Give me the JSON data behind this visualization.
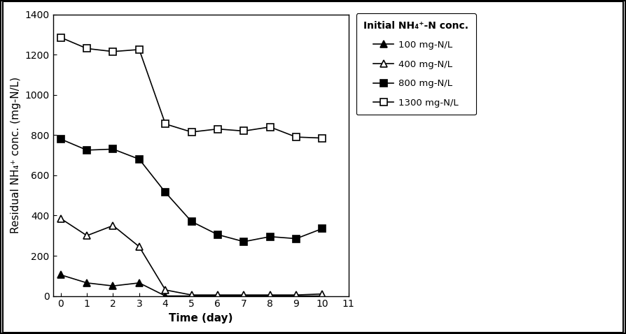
{
  "title": "",
  "xlabel": "Time (day)",
  "ylabel": "Residual NH₄⁺ conc. (mg-N/L)",
  "xlim": [
    -0.3,
    11
  ],
  "ylim": [
    0,
    1400
  ],
  "xticks": [
    0,
    1,
    2,
    3,
    4,
    5,
    6,
    7,
    8,
    9,
    10,
    11
  ],
  "yticks": [
    0,
    200,
    400,
    600,
    800,
    1000,
    1200,
    1400
  ],
  "legend_title": "Initial NH₄⁺-N conc.",
  "series": [
    {
      "label": "100 mg-N/L",
      "x": [
        0,
        1,
        2,
        3,
        4,
        5,
        6,
        7,
        8,
        9,
        10
      ],
      "y": [
        105,
        65,
        50,
        65,
        0,
        0,
        0,
        0,
        0,
        0,
        0
      ],
      "color": "black",
      "marker": "^",
      "markerfacecolor": "black",
      "markeredgecolor": "black",
      "markersize": 7
    },
    {
      "label": "400 mg-N/L",
      "x": [
        0,
        1,
        2,
        3,
        4,
        5,
        6,
        7,
        8,
        9,
        10
      ],
      "y": [
        385,
        300,
        350,
        245,
        30,
        5,
        5,
        5,
        5,
        5,
        10
      ],
      "color": "black",
      "marker": "^",
      "markerfacecolor": "white",
      "markeredgecolor": "black",
      "markersize": 7
    },
    {
      "label": "800 mg-N/L",
      "x": [
        0,
        1,
        2,
        3,
        4,
        5,
        6,
        7,
        8,
        9,
        10
      ],
      "y": [
        780,
        725,
        730,
        680,
        515,
        370,
        305,
        270,
        295,
        285,
        335
      ],
      "color": "black",
      "marker": "s",
      "markerfacecolor": "black",
      "markeredgecolor": "black",
      "markersize": 7
    },
    {
      "label": "1300 mg-N/L",
      "x": [
        0,
        1,
        2,
        3,
        4,
        5,
        6,
        7,
        8,
        9,
        10
      ],
      "y": [
        1285,
        1230,
        1215,
        1225,
        855,
        815,
        830,
        820,
        840,
        790,
        785
      ],
      "color": "black",
      "marker": "s",
      "markerfacecolor": "white",
      "markeredgecolor": "black",
      "markersize": 7
    }
  ],
  "background_color": "#ffffff",
  "legend_title_fontsize": 10,
  "legend_fontsize": 9.5,
  "axis_label_fontsize": 11,
  "tick_fontsize": 10,
  "linewidth": 1.2,
  "markeredgewidth": 1.2
}
